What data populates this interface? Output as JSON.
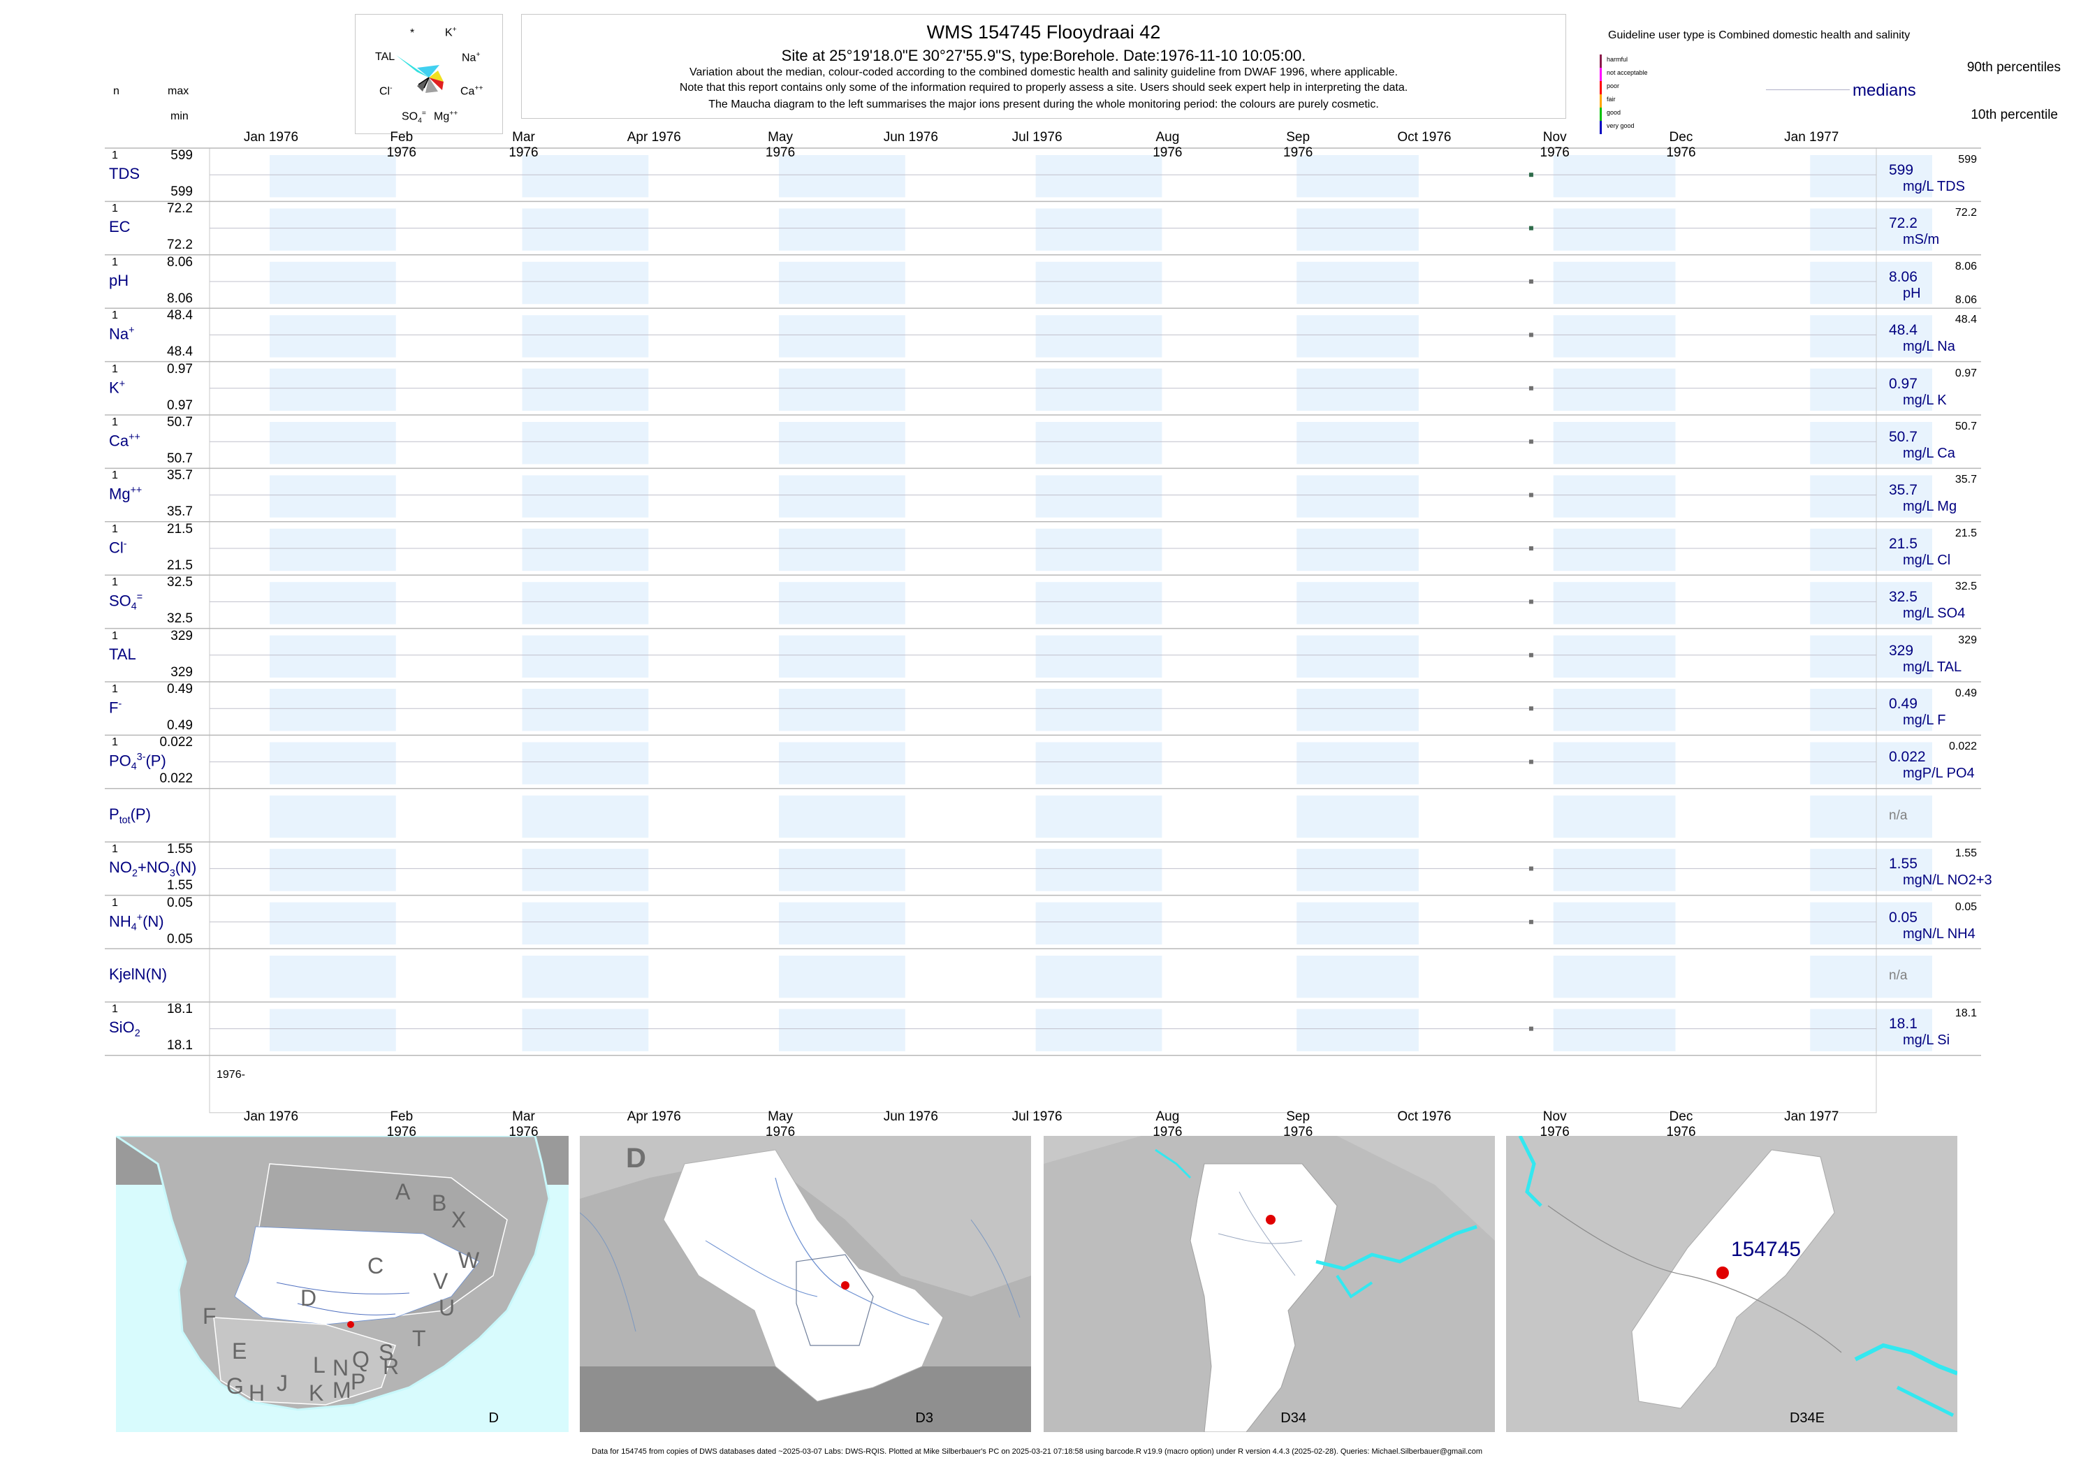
{
  "header": {
    "title": "WMS 154745  Flooydraai 42",
    "subtitle": "Site at 25°19'18.0\"E 30°27'55.9\"S, type:Borehole. Date:1976-11-10 10:05:00.",
    "note1": "Variation about the median,  colour-coded according to the combined domestic health and salinity guideline from DWAF 1996, where applicable.",
    "note2": "Note that this report contains only some of the information required to properly assess a site. Users should seek expert help in interpreting the data.",
    "note3": "The Maucha diagram to the left summarises the major ions present during the whole monitoring period: the colours are purely cosmetic."
  },
  "left_header": {
    "n": "n",
    "max": "max",
    "min": "min"
  },
  "maucha": {
    "k": "K",
    "na": "Na",
    "ca": "Ca",
    "mg": "Mg",
    "so4": "SO",
    "cl": "Cl",
    "tal": "TAL",
    "star": "*"
  },
  "guideline": {
    "title": "Guideline user type is Combined domestic health and salinity",
    "levels": [
      "harmful",
      "not acceptable",
      "poor",
      "fair",
      "good",
      "very good"
    ],
    "level_colors": [
      "#8b1a4a",
      "#ff00ff",
      "#ff0000",
      "#ffa500",
      "#00c000",
      "#0000c0"
    ],
    "p90": "90th percentiles",
    "medians": "medians",
    "p10": "10th percentile"
  },
  "month_labels": [
    "Jan 1976",
    "Feb 1976",
    "Mar 1976",
    "Apr 1976",
    "May 1976",
    "Jun 1976",
    "Jul 1976",
    "Aug 1976",
    "Sep 1976",
    "Oct 1976",
    "Nov 1976",
    "Dec 1976",
    "Jan 1977"
  ],
  "year_label": "1976-",
  "rows": [
    {
      "label": "TDS",
      "n": "1",
      "max": "599",
      "min": "599",
      "median": "599",
      "unit": "mg/L TDS",
      "p90": "599",
      "p10": ""
    },
    {
      "label": "EC",
      "n": "1",
      "max": "72.2",
      "min": "72.2",
      "median": "72.2",
      "unit": "mS/m",
      "p90": "72.2",
      "p10": ""
    },
    {
      "label": "pH",
      "n": "1",
      "max": "8.06",
      "min": "8.06",
      "median": "8.06",
      "unit": "pH",
      "p90": "8.06",
      "p10": "8.06"
    },
    {
      "label": "Na",
      "sup": "+",
      "n": "1",
      "max": "48.4",
      "min": "48.4",
      "median": "48.4",
      "unit": "mg/L Na",
      "p90": "48.4",
      "p10": ""
    },
    {
      "label": "K",
      "sup": "+",
      "n": "1",
      "max": "0.97",
      "min": "0.97",
      "median": "0.97",
      "unit": "mg/L K",
      "p90": "0.97",
      "p10": ""
    },
    {
      "label": "Ca",
      "sup": "++",
      "n": "1",
      "max": "50.7",
      "min": "50.7",
      "median": "50.7",
      "unit": "mg/L Ca",
      "p90": "50.7",
      "p10": ""
    },
    {
      "label": "Mg",
      "sup": "++",
      "n": "1",
      "max": "35.7",
      "min": "35.7",
      "median": "35.7",
      "unit": "mg/L Mg",
      "p90": "35.7",
      "p10": ""
    },
    {
      "label": "Cl",
      "sup": "-",
      "n": "1",
      "max": "21.5",
      "min": "21.5",
      "median": "21.5",
      "unit": "mg/L Cl",
      "p90": "21.5",
      "p10": ""
    },
    {
      "label": "SO",
      "sup": "=",
      "sub": "4",
      "n": "1",
      "max": "32.5",
      "min": "32.5",
      "median": "32.5",
      "unit": "mg/L SO4",
      "p90": "32.5",
      "p10": ""
    },
    {
      "label": "TAL",
      "n": "1",
      "max": "329",
      "min": "329",
      "median": "329",
      "unit": "mg/L TAL",
      "p90": "329",
      "p10": ""
    },
    {
      "label": "F",
      "sup": "-",
      "n": "1",
      "max": "0.49",
      "min": "0.49",
      "median": "0.49",
      "unit": "mg/L F",
      "p90": "0.49",
      "p10": ""
    },
    {
      "label": "PO",
      "sup": "3-",
      "sub": "4",
      "after": "(P)",
      "n": "1",
      "max": "0.022",
      "min": "0.022",
      "median": "0.022",
      "unit": "mgP/L PO4",
      "p90": "0.022",
      "p10": ""
    },
    {
      "label": "P",
      "sub": "tot",
      "after": "(P)",
      "n": "",
      "max": "",
      "min": "",
      "median": "n/a",
      "unit": "",
      "p90": "",
      "p10": ""
    },
    {
      "label": "NO",
      "sub": "2",
      "after": "+NO",
      "sub2": "3",
      "after2": "(N)",
      "n": "1",
      "max": "1.55",
      "min": "1.55",
      "median": "1.55",
      "unit": "mgN/L NO2+3",
      "p90": "1.55",
      "p10": ""
    },
    {
      "label": "NH",
      "sup": "+",
      "sub": "4",
      "after": "(N)",
      "n": "1",
      "max": "0.05",
      "min": "0.05",
      "median": "0.05",
      "unit": "mgN/L NH4",
      "p90": "0.05",
      "p10": ""
    },
    {
      "label": "KjelN(N)",
      "n": "",
      "max": "",
      "min": "",
      "median": "n/a",
      "unit": "",
      "p90": "",
      "p10": ""
    },
    {
      "label": "SiO",
      "sub": "2",
      "n": "1",
      "max": "18.1",
      "min": "18.1",
      "median": "18.1",
      "unit": "mg/L Si",
      "p90": "18.1",
      "p10": ""
    }
  ],
  "chart_data": {
    "type": "scatter",
    "x_axis": "date",
    "xlim": [
      "1976-01-01",
      "1977-01-31"
    ],
    "sample_date": "1976-11-10",
    "series": [
      {
        "name": "TDS",
        "x": [
          "1976-11-10"
        ],
        "y": [
          599
        ]
      },
      {
        "name": "EC",
        "x": [
          "1976-11-10"
        ],
        "y": [
          72.2
        ]
      },
      {
        "name": "pH",
        "x": [
          "1976-11-10"
        ],
        "y": [
          8.06
        ]
      },
      {
        "name": "Na",
        "x": [
          "1976-11-10"
        ],
        "y": [
          48.4
        ]
      },
      {
        "name": "K",
        "x": [
          "1976-11-10"
        ],
        "y": [
          0.97
        ]
      },
      {
        "name": "Ca",
        "x": [
          "1976-11-10"
        ],
        "y": [
          50.7
        ]
      },
      {
        "name": "Mg",
        "x": [
          "1976-11-10"
        ],
        "y": [
          35.7
        ]
      },
      {
        "name": "Cl",
        "x": [
          "1976-11-10"
        ],
        "y": [
          21.5
        ]
      },
      {
        "name": "SO4",
        "x": [
          "1976-11-10"
        ],
        "y": [
          32.5
        ]
      },
      {
        "name": "TAL",
        "x": [
          "1976-11-10"
        ],
        "y": [
          329
        ]
      },
      {
        "name": "F",
        "x": [
          "1976-11-10"
        ],
        "y": [
          0.49
        ]
      },
      {
        "name": "PO4(P)",
        "x": [
          "1976-11-10"
        ],
        "y": [
          0.022
        ]
      },
      {
        "name": "NO2+NO3(N)",
        "x": [
          "1976-11-10"
        ],
        "y": [
          1.55
        ]
      },
      {
        "name": "NH4(N)",
        "x": [
          "1976-11-10"
        ],
        "y": [
          0.05
        ]
      },
      {
        "name": "SiO2",
        "x": [
          "1976-11-10"
        ],
        "y": [
          18.1
        ]
      }
    ]
  },
  "maps": {
    "map1_code": "D",
    "map2_code": "D3",
    "map3_code": "D34",
    "map4_code": "D34E",
    "site_label": "154745",
    "region_letter": "D",
    "regions": [
      "A",
      "B",
      "X",
      "W",
      "C",
      "V",
      "U",
      "T",
      "D",
      "F",
      "E",
      "G",
      "H",
      "J",
      "K",
      "L",
      "M",
      "N",
      "P",
      "Q",
      "R",
      "S"
    ]
  },
  "footer": "Data for 154745 from copies of DWS databases dated ~2025-03-07 Labs: DWS-RQIS. Plotted at Mike Silberbauer's PC on 2025-03-21 07:18:58 using barcode.R v19.9 (macro option) under R version 4.4.3 (2025-02-28). Queries: Michael.Silberbauer@gmail.com"
}
